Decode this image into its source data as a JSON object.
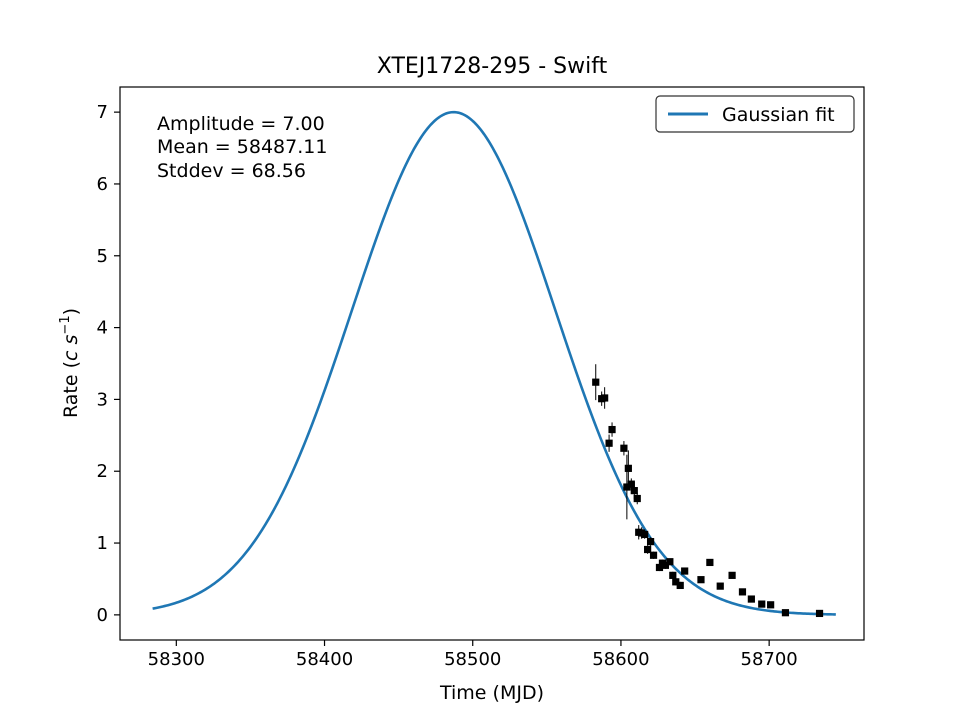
{
  "chart_data": {
    "type": "scatter",
    "title": "XTEJ1728-295 - Swift",
    "xlabel": "Time (MJD)",
    "ylabel_main": "Rate (",
    "ylabel_c": "c",
    "ylabel_s": "s",
    "ylabel_exp": "−1",
    "ylabel_close": ")",
    "xlim": [
      58262,
      58764
    ],
    "ylim": [
      -0.35,
      7.35
    ],
    "xticks": [
      58300,
      58400,
      58500,
      58600,
      58700
    ],
    "yticks": [
      0,
      1,
      2,
      3,
      4,
      5,
      6,
      7
    ],
    "grid": false,
    "legend_position": "top-right",
    "fit": {
      "name": "Gaussian fit",
      "color": "#1f77b4",
      "amplitude": 7.0,
      "mean": 58487.11,
      "stddev": 68.56,
      "x_range": [
        58284,
        58745
      ]
    },
    "annotations": [
      "Amplitude = 7.00",
      "Mean = 58487.11",
      "Stddev = 68.56"
    ],
    "series": [
      {
        "marker": "square",
        "color": "#000000",
        "x": [
          58583,
          58587,
          58589,
          58592,
          58594,
          58602,
          58604,
          58605,
          58607,
          58609,
          58611,
          58612,
          58614,
          58616,
          58618,
          58620,
          58622,
          58626,
          58628,
          58630,
          58633,
          58635,
          58637,
          58640,
          58643,
          58654,
          58660,
          58667,
          58675,
          58682,
          58688,
          58695,
          58701,
          58711,
          58734
        ],
        "y": [
          3.24,
          3.01,
          3.02,
          2.39,
          2.58,
          2.32,
          1.78,
          2.04,
          1.82,
          1.73,
          1.62,
          1.15,
          1.14,
          1.12,
          0.91,
          1.02,
          0.83,
          0.66,
          0.72,
          0.69,
          0.74,
          0.55,
          0.46,
          0.41,
          0.61,
          0.49,
          0.73,
          0.4,
          0.55,
          0.32,
          0.22,
          0.15,
          0.14,
          0.03,
          0.02
        ],
        "err": [
          0.25,
          0.1,
          0.15,
          0.12,
          0.1,
          0.1,
          0.45,
          0.25,
          0.08,
          0.12,
          0.08,
          0.1,
          0.08,
          0.06,
          0.06,
          0.06,
          0.05,
          0.05,
          0.05,
          0.05,
          0.04,
          0.05,
          0.05,
          0.05,
          0.04,
          0.04,
          0.03,
          0.03,
          0.03,
          0.03,
          0.03,
          0.03,
          0.03,
          0.02,
          0.02
        ]
      }
    ]
  }
}
